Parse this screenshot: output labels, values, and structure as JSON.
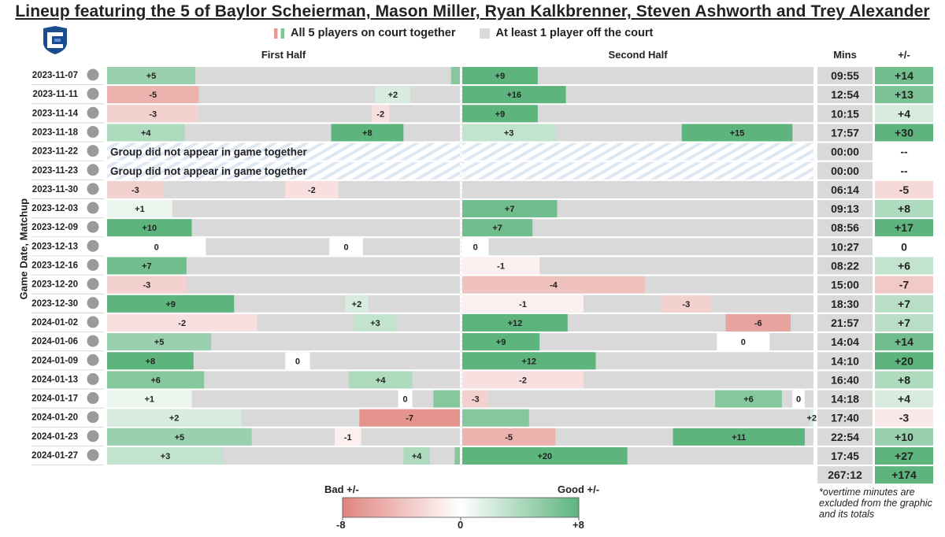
{
  "title": "Lineup featuring the 5 of Baylor Scheierman, Mason Miller, Ryan Kalkbrenner, Steven Ashworth and Trey Alexander",
  "legend": {
    "on_label": "All 5 players on court together",
    "off_label": "At least 1 player off the court"
  },
  "headers": {
    "first_half": "First Half",
    "second_half": "Second Half",
    "mins": "Mins",
    "pm": "+/-"
  },
  "y_axis_label": "Game Date, Matchup",
  "no_appear_text": "Group did not appear in game together",
  "totals": {
    "mins": "267:12",
    "pm": "+174"
  },
  "note": "*overtime minutes are excluded from the graphic and its totals",
  "colorbar": {
    "bad_label": "Bad +/-",
    "good_label": "Good +/-",
    "min_label": "-8",
    "mid_label": "0",
    "max_label": "+8",
    "min": -8,
    "max": 8
  },
  "colors": {
    "bad": "#e0847d",
    "neutral": "#ffffff",
    "good": "#5db47d",
    "off": "#d9d9d9",
    "accent": "#1a4d8f"
  },
  "chart_data": {
    "type": "timeline",
    "half_length_minutes": 20,
    "rows": [
      {
        "date": "2023-11-07",
        "icon": "rattler-icon",
        "mins": "09:55",
        "pm": "+14",
        "pm_value": 14,
        "first": [
          [
            0,
            5,
            5
          ],
          [
            19.5,
            20,
            null
          ]
        ],
        "second": [
          [
            0,
            4.3,
            9
          ]
        ]
      },
      {
        "date": "2023-11-11",
        "icon": "bison-icon",
        "mins": "12:54",
        "pm": "+13",
        "pm_value": 13,
        "first": [
          [
            0,
            5.2,
            -5
          ],
          [
            15.2,
            17.2,
            2
          ]
        ],
        "second": [
          [
            0,
            5.9,
            16
          ]
        ]
      },
      {
        "date": "2023-11-14",
        "icon": "hawkeye-icon",
        "mins": "10:15",
        "pm": "+4",
        "pm_value": 4,
        "first": [
          [
            0,
            5.2,
            -3
          ],
          [
            15,
            16,
            -2
          ]
        ],
        "second": [
          [
            0,
            4.3,
            9
          ]
        ]
      },
      {
        "date": "2023-11-18",
        "icon": "shield-logo-icon",
        "mins": "17:57",
        "pm": "+30",
        "pm_value": 30,
        "first": [
          [
            0,
            4.4,
            4
          ],
          [
            12.7,
            16.8,
            8
          ]
        ],
        "second": [
          [
            0,
            5.3,
            3
          ],
          [
            12.5,
            18.8,
            15
          ]
        ]
      },
      {
        "date": "2023-11-22",
        "icon": "l-logo-icon",
        "mins": "00:00",
        "pm": "--",
        "pm_value": null,
        "no_appear": true,
        "first": [],
        "second": []
      },
      {
        "date": "2023-11-23",
        "icon": "ram-icon",
        "mins": "00:00",
        "pm": "--",
        "pm_value": null,
        "no_appear": true,
        "first": [],
        "second": []
      },
      {
        "date": "2023-11-30",
        "icon": "cowboy-brand-icon",
        "mins": "06:14",
        "pm": "-5",
        "pm_value": -5,
        "first": [
          [
            0,
            3.2,
            -3
          ],
          [
            10.1,
            13.1,
            -2
          ]
        ],
        "second": []
      },
      {
        "date": "2023-12-03",
        "icon": "n-logo-icon",
        "mins": "09:13",
        "pm": "+8",
        "pm_value": 8,
        "first": [
          [
            0,
            3.7,
            1
          ]
        ],
        "second": [
          [
            0,
            5.4,
            7
          ]
        ]
      },
      {
        "date": "2023-12-09",
        "icon": "chippewa-icon",
        "mins": "08:56",
        "pm": "+17",
        "pm_value": 17,
        "first": [
          [
            0,
            4.8,
            10
          ]
        ],
        "second": [
          [
            0,
            4,
            7
          ]
        ]
      },
      {
        "date": "2023-12-13",
        "icon": "unlv-icon",
        "mins": "10:27",
        "pm": "0",
        "pm_value": 0,
        "first": [
          [
            0,
            5.6,
            0
          ],
          [
            12.6,
            14.5,
            0
          ]
        ],
        "second": [
          [
            0,
            1.5,
            0
          ]
        ]
      },
      {
        "date": "2023-12-16",
        "icon": "a-logo-icon",
        "mins": "08:22",
        "pm": "+6",
        "pm_value": 6,
        "first": [
          [
            0,
            4.5,
            7
          ]
        ],
        "second": [
          [
            0,
            4.4,
            -1
          ]
        ]
      },
      {
        "date": "2023-12-20",
        "icon": "v-logo-icon",
        "mins": "15:00",
        "pm": "-7",
        "pm_value": -7,
        "first": [
          [
            0,
            4.5,
            -3
          ]
        ],
        "second": [
          [
            0,
            10.4,
            -4
          ]
        ]
      },
      {
        "date": "2023-12-30",
        "icon": "marquette-icon",
        "mins": "18:30",
        "pm": "+7",
        "pm_value": 7,
        "first": [
          [
            0,
            7.2,
            9
          ],
          [
            13.5,
            14.8,
            2
          ]
        ],
        "second": [
          [
            0,
            6.9,
            -1
          ],
          [
            11.3,
            14.2,
            -3
          ]
        ]
      },
      {
        "date": "2024-01-02",
        "icon": "g-logo-icon",
        "mins": "21:57",
        "pm": "+7",
        "pm_value": 7,
        "first": [
          [
            0,
            8.5,
            -2
          ],
          [
            14,
            16.4,
            3
          ]
        ],
        "second": [
          [
            0,
            6,
            12
          ],
          [
            15,
            18.7,
            -6
          ]
        ]
      },
      {
        "date": "2024-01-06",
        "icon": "friar-icon",
        "mins": "14:04",
        "pm": "+14",
        "pm_value": 14,
        "first": [
          [
            0,
            5.9,
            5
          ]
        ],
        "second": [
          [
            0,
            4.4,
            9
          ],
          [
            14.5,
            17.5,
            0
          ]
        ]
      },
      {
        "date": "2024-01-09",
        "icon": "bluejay-icon",
        "mins": "14:10",
        "pm": "+20",
        "pm_value": 20,
        "first": [
          [
            0,
            4.9,
            8
          ],
          [
            10.1,
            11.5,
            0
          ]
        ],
        "second": [
          [
            0,
            7.6,
            12
          ]
        ]
      },
      {
        "date": "2024-01-13",
        "icon": "sj-logo-icon",
        "mins": "16:40",
        "pm": "+8",
        "pm_value": 8,
        "first": [
          [
            0,
            5.5,
            6
          ],
          [
            13.7,
            17.3,
            4
          ]
        ],
        "second": [
          [
            0,
            6.9,
            -2
          ]
        ]
      },
      {
        "date": "2024-01-17",
        "icon": "husky-icon",
        "mins": "14:18",
        "pm": "+4",
        "pm_value": 4,
        "first": [
          [
            0,
            4.8,
            1
          ],
          [
            16.5,
            17.3,
            0
          ],
          [
            18.5,
            20,
            null
          ]
        ],
        "second": [
          [
            0,
            1.5,
            -3
          ],
          [
            14.4,
            18.2,
            6
          ],
          [
            18.8,
            19.5,
            0
          ]
        ]
      },
      {
        "date": "2024-01-20",
        "icon": "pirate-icon",
        "mins": "17:40",
        "pm": "-3",
        "pm_value": -3,
        "first": [
          [
            0,
            7.6,
            2
          ],
          [
            14.3,
            20,
            -7
          ]
        ],
        "second": [
          [
            0,
            3.8,
            null
          ],
          [
            19.8,
            20,
            2
          ]
        ]
      },
      {
        "date": "2024-01-23",
        "icon": "x-logo-icon",
        "mins": "22:54",
        "pm": "+10",
        "pm_value": 10,
        "first": [
          [
            0,
            8.2,
            5
          ],
          [
            12.9,
            14.4,
            -1
          ]
        ],
        "second": [
          [
            0,
            5.3,
            -5
          ],
          [
            12,
            19.5,
            11
          ]
        ]
      },
      {
        "date": "2024-01-27",
        "icon": "bluejay-icon",
        "mins": "17:45",
        "pm": "+27",
        "pm_value": 27,
        "first": [
          [
            0,
            6.6,
            3
          ],
          [
            16.8,
            18.3,
            4
          ],
          [
            19.7,
            20,
            null
          ]
        ],
        "second": [
          [
            0,
            9.4,
            20
          ]
        ]
      }
    ]
  }
}
